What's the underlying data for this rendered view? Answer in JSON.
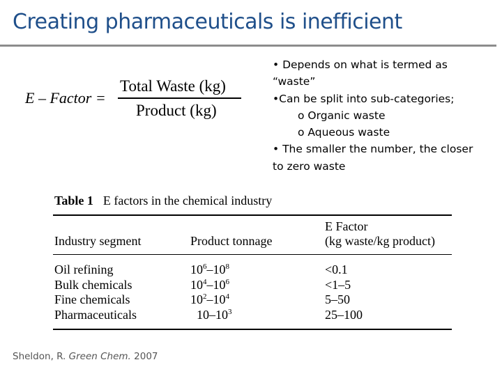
{
  "slide": {
    "title": "Creating pharmaceuticals is inefficient"
  },
  "formula": {
    "lhs": "E – Factor =",
    "numerator": "Total Waste (kg)",
    "denominator": "Product (kg)"
  },
  "bullets": [
    "• Depends on what is termed as",
    "“waste”",
    "•Can be split into sub-categories;",
    "o Organic waste",
    "o Aqueous waste",
    "• The smaller the number, the closer",
    "to zero waste"
  ],
  "table": {
    "label": "Table 1",
    "title": "E factors in the chemical industry",
    "headers": {
      "segment": "Industry segment",
      "tonnage": "Product tonnage",
      "efactor_line1": "E Factor",
      "efactor_line2": "(kg waste/kg product)"
    },
    "rows": [
      {
        "segment": "Oil refining",
        "t_low_base": "10",
        "t_low_exp": "6",
        "t_sep": "–",
        "t_high_base": "10",
        "t_high_exp": "8",
        "efactor": "<0.1"
      },
      {
        "segment": "Bulk chemicals",
        "t_low_base": "10",
        "t_low_exp": "4",
        "t_sep": "–",
        "t_high_base": "10",
        "t_high_exp": "6",
        "efactor": "<1–5"
      },
      {
        "segment": "Fine chemicals",
        "t_low_base": "10",
        "t_low_exp": "2",
        "t_sep": "–",
        "t_high_base": "10",
        "t_high_exp": "4",
        "efactor": "5–50"
      },
      {
        "segment": "Pharmaceuticals",
        "t_low_base": "10",
        "t_low_exp": "",
        "t_sep": "–",
        "t_high_base": "10",
        "t_high_exp": "3",
        "efactor": "25–100"
      }
    ]
  },
  "citation": {
    "author": "Sheldon, R.",
    "journal": "Green Chem.",
    "year": "2007"
  }
}
